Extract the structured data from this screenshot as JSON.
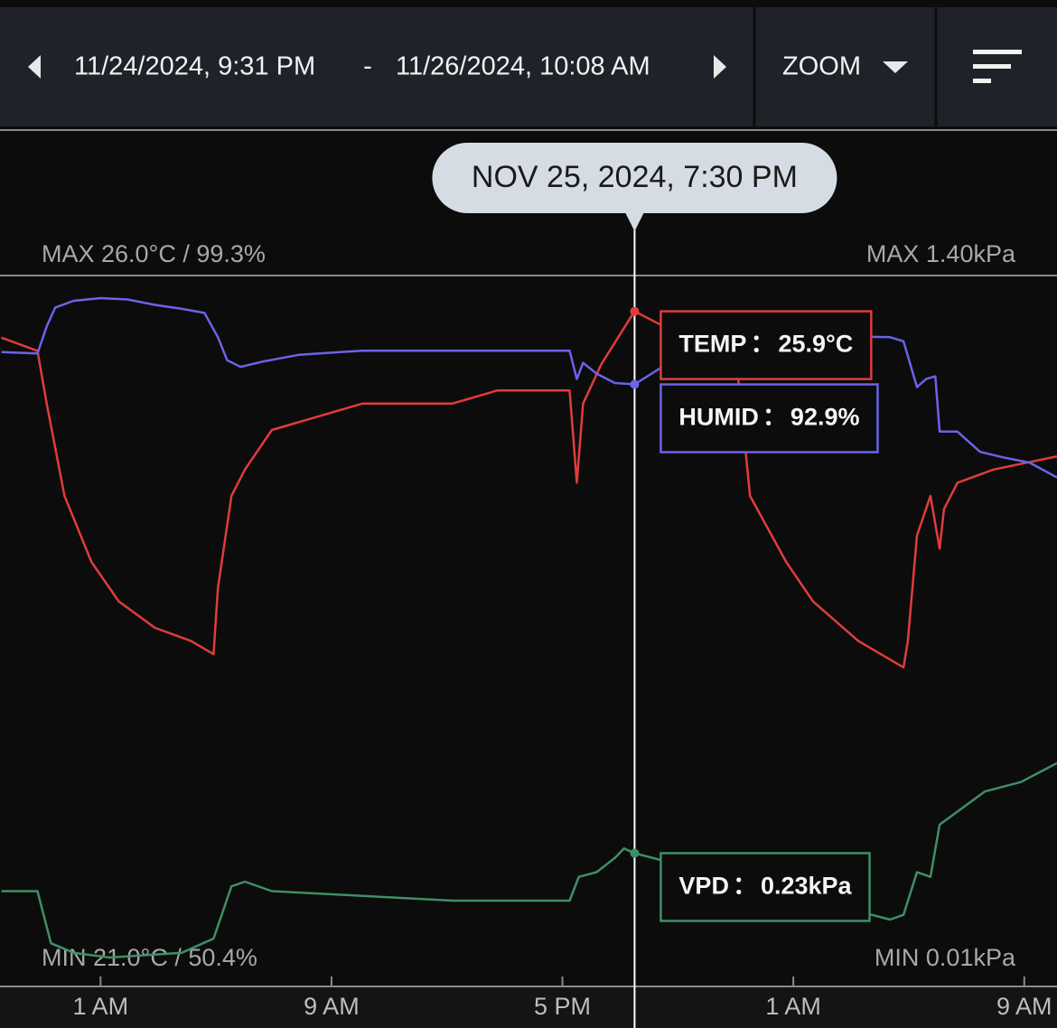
{
  "header": {
    "start": "11/24/2024, 9:31 PM",
    "range_separator": "-",
    "end": "11/26/2024, 10:08 AM",
    "zoom": "ZOOM"
  },
  "chart_data": {
    "type": "line",
    "cursor": {
      "x": "2024-11-25T19:30",
      "label": "NOV 25, 2024, 7:30 PM"
    },
    "separator": "：",
    "max_left": "MAX 26.0°C / 99.3%",
    "max_right": "MAX 1.40kPa",
    "min_left": "MIN 21.0°C / 50.4%",
    "min_right": "MIN 0.01kPa",
    "xlim": [
      "2024-11-24T21:31",
      "2024-11-26T10:08"
    ],
    "xticks": [
      {
        "value": "2024-11-25T01:00",
        "label": "1 AM"
      },
      {
        "value": "2024-11-25T09:00",
        "label": "9 AM"
      },
      {
        "value": "2024-11-25T17:00",
        "label": "5 PM"
      },
      {
        "value": "2024-11-26T01:00",
        "label": "1 AM"
      },
      {
        "value": "2024-11-26T09:00",
        "label": "9 AM"
      }
    ],
    "series": [
      {
        "name": "TEMP",
        "color": "#e03c3c",
        "cursor_label": "25.9°C",
        "ylim": [
          21.0,
          26.0
        ],
        "x": [
          "2024-11-24T21:34",
          "2024-11-24T22:49",
          "2024-11-24T23:08",
          "2024-11-24T23:45",
          "2024-11-25T00:41",
          "2024-11-25T01:38",
          "2024-11-25T02:53",
          "2024-11-25T04:08",
          "2024-11-25T04:55",
          "2024-11-25T05:04",
          "2024-11-25T05:32",
          "2024-11-25T06:00",
          "2024-11-25T06:56",
          "2024-11-25T08:30",
          "2024-11-25T10:04",
          "2024-11-25T11:38",
          "2024-11-25T13:11",
          "2024-11-25T14:45",
          "2024-11-25T16:19",
          "2024-11-25T17:15",
          "2024-11-25T17:30",
          "2024-11-25T17:43",
          "2024-11-25T18:21",
          "2024-11-25T19:30",
          "2024-11-25T20:23",
          "2024-11-25T22:53",
          "2024-11-25T23:11",
          "2024-11-25T23:30",
          "2024-11-26T00:45",
          "2024-11-26T01:41",
          "2024-11-26T03:15",
          "2024-11-26T04:49",
          "2024-11-26T04:58",
          "2024-11-26T05:17",
          "2024-11-26T05:45",
          "2024-11-26T06:04",
          "2024-11-26T06:13",
          "2024-11-26T06:41",
          "2024-11-26T07:56",
          "2024-11-26T10:08"
        ],
        "values": [
          25.7,
          25.6,
          25.2,
          24.5,
          24.0,
          23.7,
          23.5,
          23.4,
          23.3,
          23.8,
          24.5,
          24.7,
          25.0,
          25.1,
          25.2,
          25.2,
          25.2,
          25.3,
          25.3,
          25.3,
          24.6,
          25.2,
          25.5,
          25.9,
          25.8,
          25.8,
          25.2,
          24.5,
          24.0,
          23.7,
          23.4,
          23.2,
          23.4,
          24.2,
          24.5,
          24.1,
          24.4,
          24.6,
          24.7,
          24.8
        ]
      },
      {
        "name": "HUMID",
        "color": "#6b63e8",
        "cursor_label": "92.9%",
        "ylim": [
          50.4,
          99.3
        ],
        "x": [
          "2024-11-24T21:34",
          "2024-11-24T22:49",
          "2024-11-24T23:08",
          "2024-11-24T23:26",
          "2024-11-25T00:04",
          "2024-11-25T01:00",
          "2024-11-25T01:56",
          "2024-11-25T02:53",
          "2024-11-25T03:49",
          "2024-11-25T04:36",
          "2024-11-25T05:04",
          "2024-11-25T05:23",
          "2024-11-25T05:51",
          "2024-11-25T06:38",
          "2024-11-25T07:53",
          "2024-11-25T10:04",
          "2024-11-25T13:11",
          "2024-11-25T16:19",
          "2024-11-25T17:15",
          "2024-11-25T17:30",
          "2024-11-25T17:43",
          "2024-11-25T18:11",
          "2024-11-25T18:49",
          "2024-11-25T19:30",
          "2024-11-25T20:41",
          "2024-11-25T21:38",
          "2024-11-25T22:53",
          "2024-11-25T23:02",
          "2024-11-25T23:30",
          "2024-11-26T04:21",
          "2024-11-26T04:49",
          "2024-11-26T05:17",
          "2024-11-26T05:36",
          "2024-11-26T05:55",
          "2024-11-26T06:04",
          "2024-11-26T06:41",
          "2024-11-26T07:28",
          "2024-11-26T08:15",
          "2024-11-26T09:11",
          "2024-11-26T10:08"
        ],
        "values": [
          95.3,
          95.2,
          97.2,
          98.6,
          99.1,
          99.3,
          99.2,
          98.8,
          98.5,
          98.2,
          96.4,
          94.7,
          94.2,
          94.6,
          95.1,
          95.4,
          95.4,
          95.4,
          95.4,
          93.3,
          94.5,
          93.7,
          93.0,
          92.9,
          94.5,
          94.6,
          94.7,
          96.3,
          96.6,
          96.4,
          96.1,
          92.7,
          93.3,
          93.5,
          89.4,
          89.4,
          87.9,
          87.5,
          87.1,
          86.0
        ]
      },
      {
        "name": "VPD",
        "color": "#3f8f65",
        "cursor_label": "0.23kPa",
        "ylim": [
          0.01,
          1.4
        ],
        "x": [
          "2024-11-24T21:34",
          "2024-11-24T22:49",
          "2024-11-24T23:17",
          "2024-11-25T00:04",
          "2024-11-25T01:19",
          "2024-11-25T03:49",
          "2024-11-25T04:55",
          "2024-11-25T05:32",
          "2024-11-25T06:00",
          "2024-11-25T06:56",
          "2024-11-25T10:04",
          "2024-11-25T13:11",
          "2024-11-25T17:15",
          "2024-11-25T17:34",
          "2024-11-25T18:11",
          "2024-11-25T18:49",
          "2024-11-25T19:08",
          "2024-11-25T19:30",
          "2024-11-26T04:21",
          "2024-11-26T04:49",
          "2024-11-26T05:17",
          "2024-11-26T05:45",
          "2024-11-26T06:04",
          "2024-11-26T07:38",
          "2024-11-26T08:53",
          "2024-11-26T10:08"
        ],
        "values": [
          0.15,
          0.15,
          0.04,
          0.02,
          0.01,
          0.02,
          0.05,
          0.16,
          0.17,
          0.15,
          0.14,
          0.13,
          0.13,
          0.18,
          0.19,
          0.22,
          0.24,
          0.23,
          0.09,
          0.1,
          0.19,
          0.18,
          0.29,
          0.36,
          0.38,
          0.42
        ]
      }
    ]
  }
}
